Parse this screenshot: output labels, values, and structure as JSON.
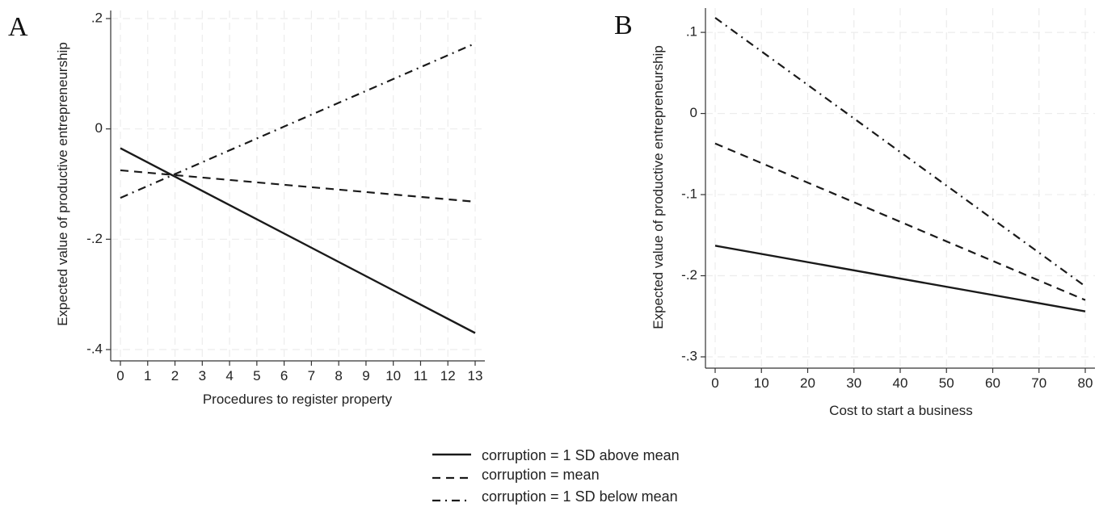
{
  "chart_data": [
    {
      "type": "line",
      "panel_label": "A",
      "xlabel": "Procedures to register property",
      "ylabel": "Expected value of productive entrepreneurship",
      "xlim": [
        0,
        13
      ],
      "ylim": [
        -0.4,
        0.2
      ],
      "x_ticks": [
        0,
        1,
        2,
        3,
        4,
        5,
        6,
        7,
        8,
        9,
        10,
        11,
        12,
        13
      ],
      "x_tick_labels": [
        "0",
        "1",
        "2",
        "3",
        "4",
        "5",
        "6",
        "7",
        "8",
        "9",
        "10",
        "11",
        "12",
        "13"
      ],
      "y_ticks": [
        -0.4,
        -0.2,
        0,
        0.2
      ],
      "y_tick_labels": [
        "-.4",
        "-.2",
        "0",
        ".2"
      ],
      "grid": true,
      "series": [
        {
          "name": "corruption = 1 SD above mean",
          "style": "solid",
          "x": [
            0,
            13
          ],
          "y": [
            -0.035,
            -0.37
          ]
        },
        {
          "name": "corruption  = mean",
          "style": "dash",
          "x": [
            0,
            13
          ],
          "y": [
            -0.075,
            -0.132
          ]
        },
        {
          "name": "corruption = 1 SD below mean",
          "style": "dashdot",
          "x": [
            0,
            13
          ],
          "y": [
            -0.125,
            0.155
          ]
        }
      ]
    },
    {
      "type": "line",
      "panel_label": "B",
      "xlabel": "Cost to start a business",
      "ylabel": "Expected value of productive entrepreneurship",
      "xlim": [
        0,
        80
      ],
      "ylim": [
        -0.3,
        0.12
      ],
      "x_ticks": [
        0,
        10,
        20,
        30,
        40,
        50,
        60,
        70,
        80
      ],
      "x_tick_labels": [
        "0",
        "10",
        "20",
        "30",
        "40",
        "50",
        "60",
        "70",
        "80"
      ],
      "y_ticks": [
        -0.3,
        -0.2,
        -0.1,
        0,
        0.1
      ],
      "y_tick_labels": [
        "-.3",
        "-.2",
        "-.1",
        "0",
        ".1"
      ],
      "grid": true,
      "series": [
        {
          "name": "corruption = 1 SD above mean",
          "style": "solid",
          "x": [
            0,
            80
          ],
          "y": [
            -0.163,
            -0.244
          ]
        },
        {
          "name": "corruption  = mean",
          "style": "dash",
          "x": [
            0,
            80
          ],
          "y": [
            -0.037,
            -0.23
          ]
        },
        {
          "name": "corruption = 1 SD below mean",
          "style": "dashdot",
          "x": [
            0,
            80
          ],
          "y": [
            0.118,
            -0.213
          ]
        }
      ]
    }
  ],
  "legend": {
    "placement": "bottom-center",
    "items": [
      {
        "label": "corruption = 1 SD above mean",
        "style": "solid"
      },
      {
        "label": "corruption  = mean",
        "style": "dash"
      },
      {
        "label": "corruption = 1 SD below mean",
        "style": "dashdot"
      }
    ]
  },
  "colors": {
    "line": "#1a1a1a",
    "grid": "#ececec",
    "axis": "#333333"
  }
}
